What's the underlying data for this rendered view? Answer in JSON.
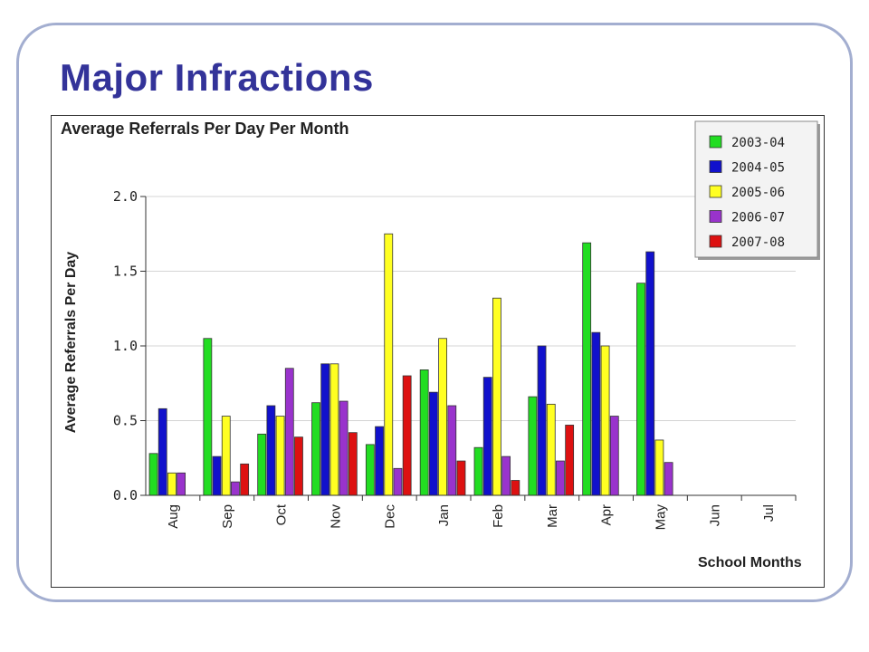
{
  "slide": {
    "title": "Major Infractions"
  },
  "colors": {
    "2003-04": "#22dd22",
    "2004-05": "#1111cc",
    "2005-06": "#ffff22",
    "2006-07": "#9933cc",
    "2007-08": "#dd1111"
  },
  "chart_data": {
    "type": "bar",
    "title": "Average Referrals Per Day Per Month",
    "xlabel": "School Months",
    "ylabel": "Average Referrals Per Day",
    "ylim": [
      0,
      2.0
    ],
    "yticks": [
      "0.0",
      "0.5",
      "1.0",
      "1.5",
      "2.0"
    ],
    "grid": true,
    "legend_position": "top-right",
    "categories": [
      "Aug",
      "Sep",
      "Oct",
      "Nov",
      "Dec",
      "Jan",
      "Feb",
      "Mar",
      "Apr",
      "May",
      "Jun",
      "Jul"
    ],
    "series": [
      {
        "name": "2003-04",
        "color": "#22dd22",
        "values": [
          0.28,
          1.05,
          0.41,
          0.62,
          0.34,
          0.84,
          0.32,
          0.66,
          1.69,
          1.42,
          0,
          0
        ]
      },
      {
        "name": "2004-05",
        "color": "#1111cc",
        "values": [
          0.58,
          0.26,
          0.6,
          0.88,
          0.46,
          0.69,
          0.79,
          1.0,
          1.09,
          1.63,
          0,
          0
        ]
      },
      {
        "name": "2005-06",
        "color": "#ffff22",
        "values": [
          0.15,
          0.53,
          0.53,
          0.88,
          1.75,
          1.05,
          1.32,
          0.61,
          1.0,
          0.37,
          0,
          0
        ]
      },
      {
        "name": "2006-07",
        "color": "#9933cc",
        "values": [
          0.15,
          0.09,
          0.85,
          0.63,
          0.18,
          0.6,
          0.26,
          0.23,
          0.53,
          0.22,
          0,
          0
        ]
      },
      {
        "name": "2007-08",
        "color": "#dd1111",
        "values": [
          0,
          0.21,
          0.39,
          0.42,
          0.8,
          0.23,
          0.1,
          0.47,
          0,
          0,
          0,
          0
        ]
      }
    ]
  }
}
